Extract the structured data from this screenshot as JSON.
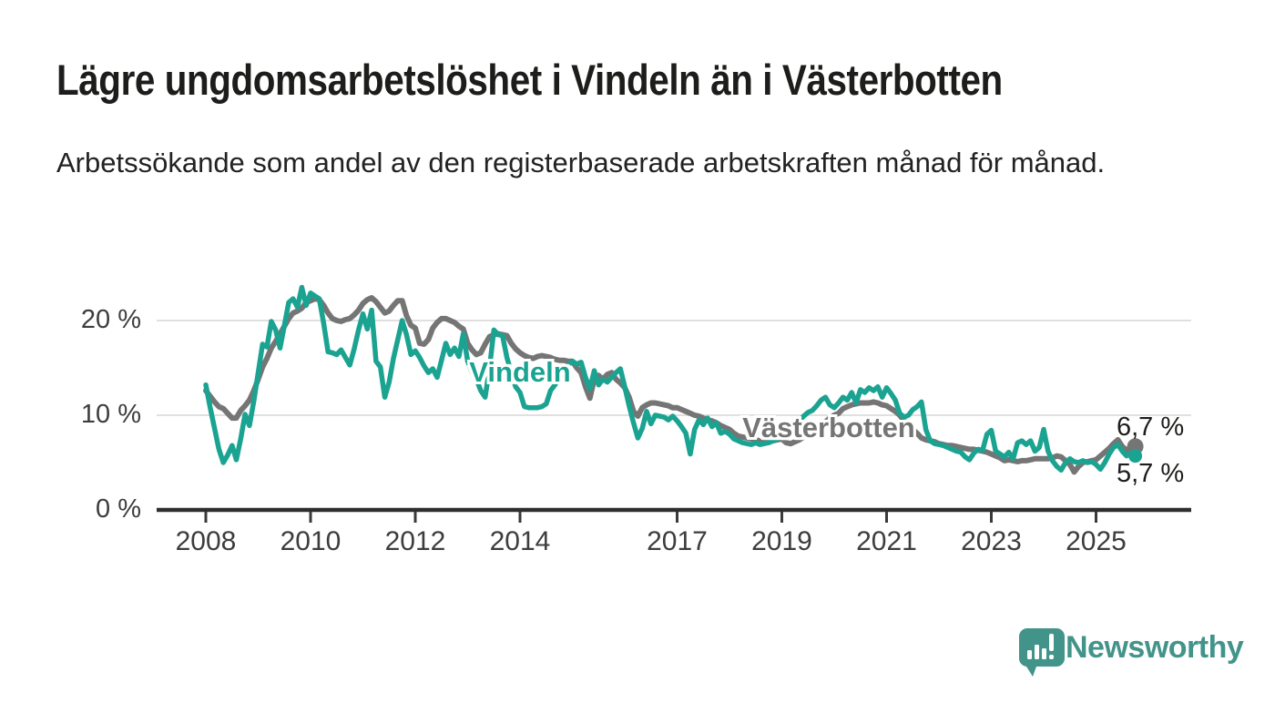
{
  "header": {
    "title": "Lägre ungdomsarbetslöshet i Vindeln än i Västerbotten",
    "subtitle": "Arbetssökande som andel av den registerbaserade arbetskraften månad för månad."
  },
  "footer": {
    "brand": "Newsworthy"
  },
  "colors": {
    "vindeln": "#1ba392",
    "vasterbotten": "#757575",
    "axis": "#3a3a3a",
    "grid": "#e0e0e0",
    "text": "#1d1d1b",
    "brand_teal": "#42948a"
  },
  "chart_data": {
    "type": "line",
    "title": "Lägre ungdomsarbetslöshet i Vindeln än i Västerbotten",
    "xlabel": "",
    "ylabel": "",
    "x_start": "2008-01",
    "x_end": "2025-10",
    "ylim": [
      0,
      24
    ],
    "grid": "horizontal",
    "legend_position": "inline-labels",
    "y_ticks": [
      {
        "value": 0,
        "label": "0 %"
      },
      {
        "value": 10,
        "label": "10 %"
      },
      {
        "value": 20,
        "label": "20 %"
      }
    ],
    "grid_values": [
      10,
      20
    ],
    "x_ticks": [
      {
        "year": 2008,
        "label": "2008"
      },
      {
        "year": 2010,
        "label": "2010"
      },
      {
        "year": 2012,
        "label": "2012"
      },
      {
        "year": 2014,
        "label": "2014"
      },
      {
        "year": 2017,
        "label": "2017"
      },
      {
        "year": 2019,
        "label": "2019"
      },
      {
        "year": 2021,
        "label": "2021"
      },
      {
        "year": 2023,
        "label": "2023"
      },
      {
        "year": 2025,
        "label": "2025"
      }
    ],
    "series": [
      {
        "name": "Vindeln",
        "color": "#1ba392",
        "end_label": "5,7 %",
        "values": [
          13.2,
          10.8,
          8.6,
          6.4,
          5.0,
          5.8,
          6.8,
          5.3,
          7.5,
          10.1,
          8.9,
          11.5,
          14.5,
          17.5,
          17.2,
          19.9,
          19.0,
          17.1,
          19.5,
          21.9,
          22.3,
          21.4,
          23.5,
          21.6,
          22.9,
          22.6,
          22.3,
          19.7,
          16.7,
          16.6,
          16.4,
          16.9,
          16.1,
          15.3,
          17.0,
          19.0,
          20.7,
          19.1,
          21.1,
          15.7,
          15.1,
          11.9,
          13.5,
          16.0,
          18.0,
          20.0,
          18.5,
          16.4,
          16.8,
          16.1,
          15.2,
          14.5,
          14.9,
          14.0,
          15.8,
          17.6,
          16.4,
          17.1,
          16.2,
          18.6,
          15.7,
          14.5,
          13.8,
          12.6,
          11.9,
          15.0,
          19.0,
          18.5,
          18.4,
          16.1,
          14.5,
          13.0,
          12.4,
          10.9,
          10.8,
          10.8,
          10.8,
          10.9,
          11.2,
          12.6,
          13.2,
          14.0,
          14.8,
          15.3,
          15.7,
          15.4,
          15.6,
          14.0,
          12.8,
          14.7,
          13.2,
          13.8,
          13.5,
          14.0,
          14.5,
          14.9,
          13.0,
          11.0,
          9.2,
          7.6,
          8.6,
          10.4,
          9.1,
          10.0,
          9.9,
          9.8,
          9.5,
          9.9,
          9.4,
          8.8,
          8.1,
          5.9,
          8.5,
          9.5,
          9.0,
          9.7,
          8.8,
          9.2,
          8.1,
          8.3,
          8.0,
          7.5,
          7.3,
          7.1,
          7.0,
          6.9,
          7.1,
          6.9,
          7.0,
          7.1,
          7.3,
          7.5,
          7.8,
          8.0,
          8.4,
          8.9,
          9.4,
          9.9,
          10.3,
          10.5,
          11.0,
          11.6,
          11.9,
          11.1,
          10.8,
          11.3,
          11.9,
          11.6,
          12.4,
          11.3,
          12.7,
          12.4,
          12.9,
          12.6,
          13.0,
          11.9,
          12.9,
          12.3,
          11.6,
          10.2,
          9.8,
          10.0,
          10.6,
          10.9,
          11.4,
          8.5,
          7.3,
          7.0,
          6.9,
          6.8,
          6.6,
          6.4,
          6.2,
          6.1,
          5.6,
          5.3,
          6.0,
          6.4,
          6.3,
          8.0,
          8.4,
          6.2,
          5.9,
          5.6,
          6.1,
          5.4,
          7.1,
          7.3,
          6.9,
          7.3,
          6.2,
          6.6,
          8.5,
          6.2,
          5.2,
          4.6,
          4.2,
          5.0,
          5.4,
          5.1,
          5.0,
          5.2,
          5.0,
          5.1,
          4.8,
          4.3,
          5.0,
          5.9,
          6.6,
          6.9,
          6.2,
          5.7,
          6.1,
          5.7
        ]
      },
      {
        "name": "Västerbotten",
        "color": "#757575",
        "end_label": "6,7 %",
        "values": [
          12.6,
          12.0,
          11.4,
          10.9,
          10.7,
          10.2,
          9.7,
          9.7,
          10.5,
          11.0,
          11.6,
          12.6,
          13.8,
          15.1,
          16.0,
          17.1,
          17.8,
          18.6,
          19.4,
          20.2,
          20.8,
          21.0,
          21.3,
          21.9,
          22.1,
          22.3,
          22.2,
          21.6,
          20.8,
          20.2,
          20.0,
          19.9,
          20.1,
          20.2,
          20.6,
          21.1,
          21.8,
          22.2,
          22.4,
          22.0,
          21.4,
          20.8,
          21.0,
          21.6,
          22.1,
          22.1,
          20.5,
          19.5,
          19.2,
          17.6,
          17.5,
          18.0,
          19.2,
          19.8,
          20.2,
          20.2,
          20.0,
          19.8,
          19.4,
          19.1,
          17.6,
          16.9,
          16.4,
          16.6,
          17.5,
          18.3,
          18.5,
          18.6,
          18.5,
          18.4,
          17.6,
          17.0,
          16.6,
          16.3,
          16.1,
          16.0,
          16.2,
          16.3,
          16.2,
          16.1,
          15.9,
          15.8,
          15.8,
          15.7,
          15.7,
          15.0,
          14.5,
          13.0,
          11.8,
          13.8,
          14.2,
          13.8,
          14.3,
          14.5,
          13.8,
          13.4,
          12.9,
          11.9,
          10.4,
          9.9,
          10.8,
          11.1,
          11.3,
          11.3,
          11.2,
          11.1,
          11.0,
          10.8,
          10.8,
          10.6,
          10.4,
          10.2,
          10.0,
          9.9,
          9.7,
          9.5,
          9.4,
          9.2,
          8.9,
          8.7,
          8.5,
          8.1,
          7.8,
          7.7,
          7.6,
          7.5,
          7.4,
          7.3,
          7.3,
          7.2,
          7.3,
          7.4,
          7.5,
          7.1,
          7.0,
          7.2,
          7.4,
          7.7,
          8.0,
          8.3,
          8.6,
          8.9,
          9.3,
          9.7,
          10.0,
          10.2,
          10.7,
          10.9,
          11.1,
          11.2,
          11.3,
          11.3,
          11.3,
          11.4,
          11.3,
          11.1,
          11.0,
          10.7,
          10.4,
          10.0,
          9.4,
          8.8,
          8.5,
          8.1,
          7.6,
          7.4,
          7.3,
          7.2,
          7.0,
          6.9,
          6.8,
          6.8,
          6.7,
          6.6,
          6.5,
          6.4,
          6.4,
          6.3,
          6.2,
          6.1,
          5.9,
          5.7,
          5.5,
          5.2,
          5.3,
          5.2,
          5.1,
          5.2,
          5.2,
          5.3,
          5.4,
          5.4,
          5.4,
          5.4,
          5.5,
          5.7,
          5.6,
          5.2,
          4.8,
          4.0,
          4.6,
          5.0,
          5.1,
          5.2,
          5.3,
          5.7,
          6.1,
          6.5,
          7.0,
          7.4,
          6.7,
          6.3,
          6.6,
          6.7
        ]
      }
    ]
  }
}
